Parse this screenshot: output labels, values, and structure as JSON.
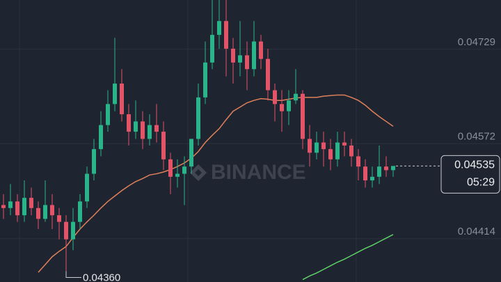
{
  "chart_data": {
    "type": "candlestick",
    "watermark": "BINANCE",
    "up_color": "#2bb38a",
    "down_color": "#e25468",
    "ylim": [
      0.04342,
      0.04811
    ],
    "yticks": [
      0.04729,
      0.04572,
      0.04414
    ],
    "grid": true,
    "open": [
      0.0447,
      0.04465,
      0.04476,
      0.04453,
      0.04482,
      0.04465,
      0.04447,
      0.0447,
      0.04453,
      0.04442,
      0.04413,
      0.04442,
      0.04476,
      0.04522,
      0.04563,
      0.04603,
      0.04638,
      0.04672,
      0.04621,
      0.04592,
      0.04609,
      0.0458,
      0.04603,
      0.04592,
      0.04546,
      0.04517,
      0.04522,
      0.04534,
      0.0458,
      0.04649,
      0.04707,
      0.04753,
      0.04776,
      0.0473,
      0.04707,
      0.04719,
      0.04696,
      0.04742,
      0.04713,
      0.04661,
      0.04638,
      0.04626,
      0.04644,
      0.04655,
      0.0458,
      0.04557,
      0.04574,
      0.04563,
      0.04546,
      0.04574,
      0.04569,
      0.04551,
      0.04534,
      0.04511,
      0.04517,
      0.04534,
      0.04528
    ],
    "high": [
      0.04488,
      0.04505,
      0.04488,
      0.04511,
      0.04499,
      0.04476,
      0.04511,
      0.04488,
      0.04465,
      0.04453,
      0.04465,
      0.04488,
      0.04534,
      0.0458,
      0.04626,
      0.04661,
      0.04748,
      0.04696,
      0.04638,
      0.04644,
      0.04626,
      0.04621,
      0.04638,
      0.04609,
      0.04557,
      0.04546,
      0.04551,
      0.0458,
      0.04672,
      0.04742,
      0.04811,
      0.04811,
      0.04811,
      0.04748,
      0.04776,
      0.04742,
      0.04776,
      0.04753,
      0.0473,
      0.04672,
      0.04661,
      0.04661,
      0.04696,
      0.04661,
      0.04603,
      0.04592,
      0.04592,
      0.0458,
      0.04592,
      0.04592,
      0.0458,
      0.04563,
      0.04546,
      0.04534,
      0.04569,
      0.04551,
      0.04534
    ],
    "low": [
      0.04447,
      0.04453,
      0.04442,
      0.04442,
      0.04453,
      0.0443,
      0.04442,
      0.0443,
      0.04413,
      0.0436,
      0.04395,
      0.0443,
      0.04465,
      0.04511,
      0.04551,
      0.04592,
      0.04626,
      0.04609,
      0.04569,
      0.0458,
      0.04563,
      0.04569,
      0.04574,
      0.04528,
      0.04488,
      0.04499,
      0.0447,
      0.04522,
      0.04569,
      0.04638,
      0.04696,
      0.0473,
      0.04684,
      0.04672,
      0.04684,
      0.04661,
      0.04684,
      0.04696,
      0.04644,
      0.04609,
      0.04592,
      0.04603,
      0.04638,
      0.04563,
      0.04534,
      0.04546,
      0.04534,
      0.04528,
      0.04534,
      0.04551,
      0.04534,
      0.04511,
      0.04499,
      0.04499,
      0.04505,
      0.04517,
      0.04517
    ],
    "close": [
      0.04465,
      0.04476,
      0.04453,
      0.04482,
      0.04465,
      0.04447,
      0.0447,
      0.04453,
      0.04442,
      0.04413,
      0.04442,
      0.04476,
      0.04522,
      0.04563,
      0.04603,
      0.04638,
      0.04672,
      0.04621,
      0.04592,
      0.04609,
      0.0458,
      0.04603,
      0.04592,
      0.04546,
      0.04517,
      0.04522,
      0.04534,
      0.0458,
      0.04649,
      0.04707,
      0.04753,
      0.04776,
      0.0473,
      0.04707,
      0.04719,
      0.04696,
      0.04742,
      0.04713,
      0.04661,
      0.04638,
      0.04626,
      0.04644,
      0.04655,
      0.0458,
      0.04557,
      0.04574,
      0.04563,
      0.04546,
      0.04574,
      0.04569,
      0.04551,
      0.04534,
      0.04511,
      0.04517,
      0.04534,
      0.04528,
      0.04535
    ],
    "overlays": [
      {
        "color": "#e0805a",
        "values": [
          null,
          null,
          null,
          null,
          null,
          0.04358,
          0.04371,
          0.04384,
          0.04393,
          0.04401,
          0.04416,
          0.0443,
          0.04442,
          0.04453,
          0.04465,
          0.04476,
          0.04485,
          0.04494,
          0.04502,
          0.04509,
          0.04514,
          0.0452,
          0.04522,
          0.04525,
          0.04529,
          0.04534,
          0.0454,
          0.04548,
          0.04559,
          0.04574,
          0.04586,
          0.04597,
          0.04612,
          0.04626,
          0.04633,
          0.0464,
          0.04644,
          0.04647,
          0.04646,
          0.04644,
          0.04644,
          0.04646,
          0.04648,
          0.04649,
          0.04649,
          0.04649,
          0.04651,
          0.04652,
          0.04653,
          0.04653,
          0.04649,
          0.04644,
          0.04636,
          0.04626,
          0.04617,
          0.04609,
          0.04601
        ]
      },
      {
        "color": "#5fd068",
        "values": [
          null,
          null,
          null,
          null,
          null,
          null,
          null,
          null,
          null,
          null,
          null,
          null,
          null,
          null,
          null,
          null,
          null,
          null,
          null,
          null,
          null,
          null,
          null,
          null,
          null,
          null,
          null,
          null,
          null,
          null,
          null,
          null,
          null,
          null,
          null,
          null,
          null,
          null,
          null,
          null,
          null,
          null,
          null,
          0.04346,
          0.04352,
          0.04357,
          0.04363,
          0.04369,
          0.04375,
          0.0438,
          0.04386,
          0.04392,
          0.04398,
          0.04403,
          0.04409,
          0.04415,
          0.04421
        ]
      }
    ],
    "low_marker": {
      "value": 0.0436,
      "label": "0.04360"
    },
    "last_price": {
      "value": 0.04535,
      "label": "0.04535"
    },
    "countdown": "05:29"
  }
}
